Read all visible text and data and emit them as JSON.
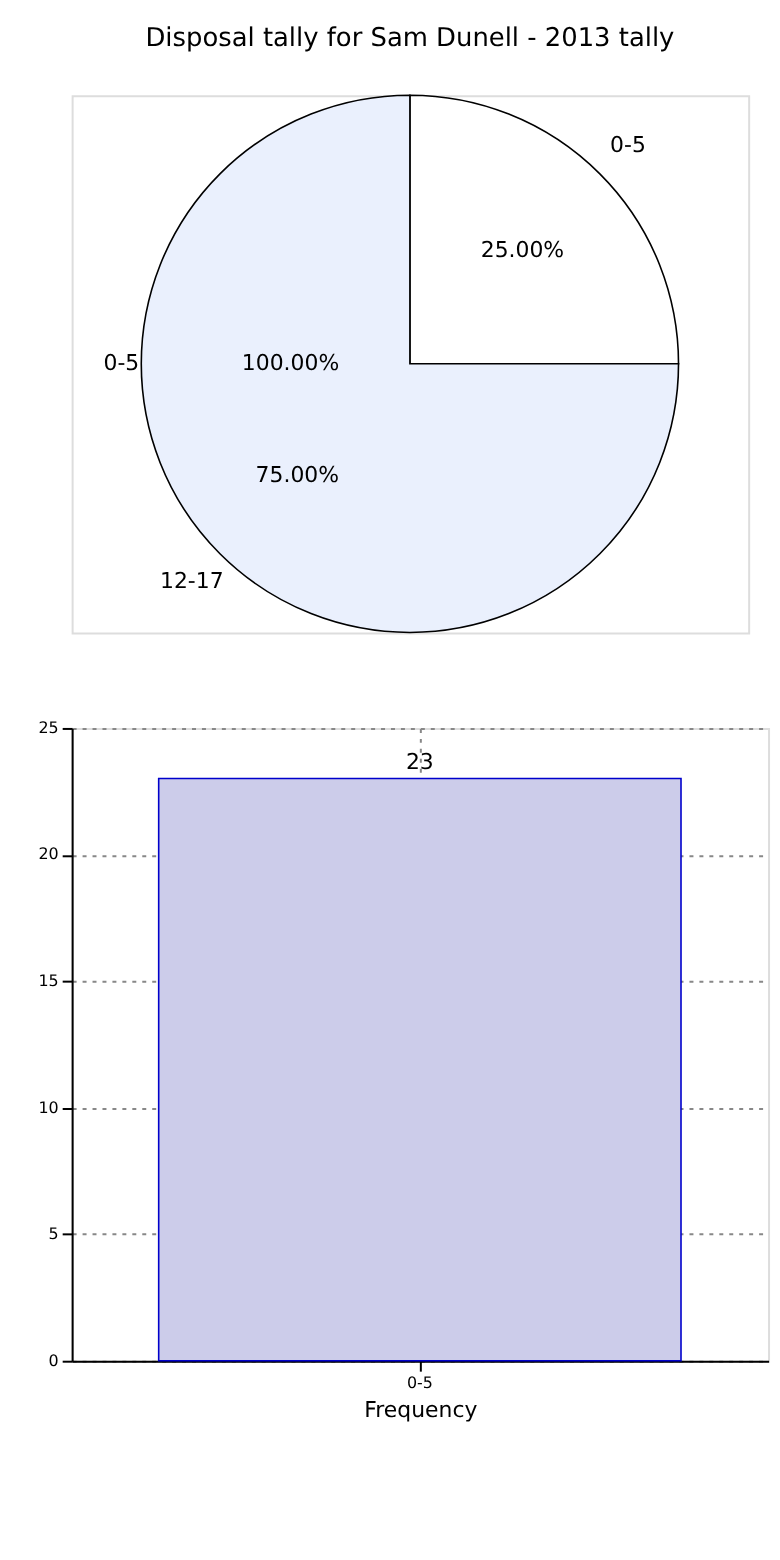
{
  "chart_data": [
    {
      "type": "pie",
      "title": "Disposal tally for Sam Dunell - 2013 tally",
      "categories": [
        "0-5",
        "12-17"
      ],
      "values": [
        25,
        75
      ],
      "colors": [
        "#ffffff",
        "#eaf0fd"
      ],
      "value_labels": [
        "25.00%",
        "75.00%"
      ],
      "annotations": [
        "0-5",
        "100.00%"
      ]
    },
    {
      "type": "bar",
      "categories": [
        "0-5"
      ],
      "values": [
        23
      ],
      "color": "#ccccea",
      "xlabel": "Frequency",
      "ylim": [
        0,
        25
      ],
      "yticks": [
        0,
        5,
        10,
        15,
        20,
        25
      ],
      "grid": true,
      "data_labels": true
    }
  ]
}
